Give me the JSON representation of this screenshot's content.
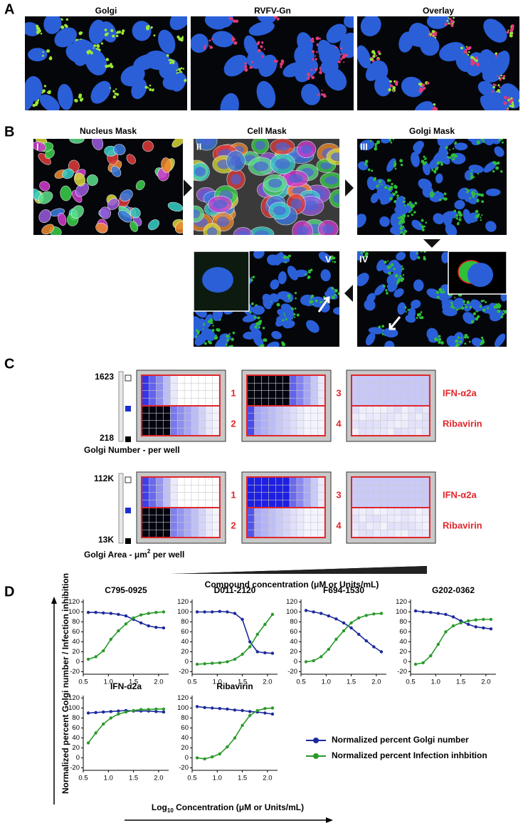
{
  "panel_labels": [
    "A",
    "B",
    "C",
    "D"
  ],
  "panel_a": {
    "titles": [
      "Golgi",
      "RVFV-Gn",
      "Overlay"
    ]
  },
  "panel_b": {
    "titles": [
      "Nucleus Mask",
      "Cell Mask",
      "Golgi Mask"
    ],
    "steps": [
      "I",
      "II",
      "III",
      "IV",
      "V"
    ]
  },
  "panel_c": {
    "rows": [
      {
        "scale_max": "1623",
        "scale_min": "218",
        "caption": "Golgi Number - per well"
      },
      {
        "scale_max": "112K",
        "scale_min": "13K",
        "caption": {
          "text": "Golgi Area - μm",
          "sup": "2",
          "rest": " per well"
        }
      }
    ],
    "plate_numbers": [
      "1",
      "2",
      "3",
      "4"
    ],
    "treatments": [
      "IFN-α2a",
      "Ribavirin"
    ],
    "gradient_label": "Compound concentration (μM or Units/mL)"
  },
  "panel_d": {
    "y_label": "Normalized percent Golgi number / Infection inhibition",
    "x_label": {
      "main": "Log",
      "sub": "10",
      "rest": " Concentration (μM or Units/mL)"
    },
    "legend": [
      {
        "name": "Normalized percent Golgi number",
        "color": "#1c2a9c"
      },
      {
        "name": "Normalized percent Infection inhbition",
        "color": "#2a9a2a"
      }
    ]
  },
  "chart_data": [
    {
      "type": "line",
      "title": "C795-0925",
      "x": [
        0.6,
        0.75,
        0.9,
        1.05,
        1.2,
        1.35,
        1.5,
        1.65,
        1.8,
        1.95,
        2.1
      ],
      "series": [
        {
          "color": "#1c2a9c",
          "values": [
            99,
            99,
            98,
            97,
            95,
            92,
            85,
            78,
            72,
            69,
            68
          ]
        },
        {
          "color": "#2a9a2a",
          "values": [
            5,
            10,
            22,
            45,
            62,
            76,
            88,
            94,
            97,
            99,
            100
          ]
        }
      ],
      "xlim": [
        0.5,
        2.2
      ],
      "xticks": [
        0.5,
        {
          "value": 1,
          "label": "1.0"
        },
        1.5,
        {
          "value": 2,
          "label": "2.0"
        }
      ],
      "ylim": [
        -25,
        125
      ],
      "yticks": [
        -20,
        0,
        20,
        40,
        60,
        80,
        100,
        120
      ]
    },
    {
      "type": "line",
      "title": "D011-2120",
      "x": [
        0.6,
        0.75,
        0.9,
        1.05,
        1.2,
        1.35,
        1.5,
        1.65,
        1.8,
        1.95,
        2.1
      ],
      "series": [
        {
          "color": "#1c2a9c",
          "values": [
            100,
            100,
            100,
            101,
            100,
            97,
            85,
            40,
            20,
            18,
            17
          ]
        },
        {
          "color": "#2a9a2a",
          "values": [
            -5,
            -4,
            -3,
            -2,
            0,
            5,
            15,
            30,
            55,
            75,
            95
          ]
        }
      ],
      "xlim": [
        0.5,
        2.2
      ],
      "xticks": [
        0.5,
        {
          "value": 1,
          "label": "1.0"
        },
        1.5,
        {
          "value": 2,
          "label": "2.0"
        }
      ],
      "ylim": [
        -25,
        125
      ],
      "yticks": [
        -20,
        0,
        20,
        40,
        60,
        80,
        100,
        120
      ]
    },
    {
      "type": "line",
      "title": "F694-1530",
      "x": [
        0.6,
        0.75,
        0.9,
        1.05,
        1.2,
        1.35,
        1.5,
        1.65,
        1.8,
        1.95,
        2.1
      ],
      "series": [
        {
          "color": "#1c2a9c",
          "values": [
            103,
            100,
            97,
            92,
            86,
            78,
            68,
            55,
            42,
            30,
            20
          ]
        },
        {
          "color": "#2a9a2a",
          "values": [
            0,
            2,
            10,
            25,
            45,
            62,
            78,
            88,
            93,
            96,
            97
          ]
        }
      ],
      "xlim": [
        0.5,
        2.2
      ],
      "xticks": [
        0.5,
        {
          "value": 1,
          "label": "1.0"
        },
        1.5,
        {
          "value": 2,
          "label": "2.0"
        }
      ],
      "ylim": [
        -25,
        125
      ],
      "yticks": [
        -20,
        0,
        20,
        40,
        60,
        80,
        100,
        120
      ]
    },
    {
      "type": "line",
      "title": "G202-0362",
      "x": [
        0.6,
        0.75,
        0.9,
        1.05,
        1.2,
        1.35,
        1.5,
        1.65,
        1.8,
        1.95,
        2.1
      ],
      "series": [
        {
          "color": "#1c2a9c",
          "values": [
            102,
            100,
            99,
            97,
            95,
            90,
            82,
            75,
            70,
            68,
            66
          ]
        },
        {
          "color": "#2a9a2a",
          "values": [
            -5,
            -2,
            12,
            35,
            60,
            72,
            78,
            82,
            84,
            85,
            85
          ]
        }
      ],
      "xlim": [
        0.5,
        2.2
      ],
      "xticks": [
        0.5,
        {
          "value": 1,
          "label": "1.0"
        },
        1.5,
        {
          "value": 2,
          "label": "2.0"
        }
      ],
      "ylim": [
        -25,
        125
      ],
      "yticks": [
        -20,
        0,
        20,
        40,
        60,
        80,
        100,
        120
      ]
    },
    {
      "type": "line",
      "title": "IFN-α2a",
      "x": [
        0.6,
        0.75,
        0.9,
        1.05,
        1.2,
        1.35,
        1.5,
        1.65,
        1.8,
        1.95,
        2.1
      ],
      "series": [
        {
          "color": "#1c2a9c",
          "values": [
            90,
            91,
            92,
            93,
            94,
            95,
            94,
            94,
            94,
            93,
            92
          ]
        },
        {
          "color": "#2a9a2a",
          "values": [
            30,
            50,
            68,
            80,
            88,
            92,
            95,
            97,
            97,
            98,
            98
          ]
        }
      ],
      "xlim": [
        0.5,
        2.2
      ],
      "xticks": [
        0.5,
        {
          "value": 1,
          "label": "1.0"
        },
        1.5,
        {
          "value": 2,
          "label": "2.0"
        }
      ],
      "ylim": [
        -25,
        125
      ],
      "yticks": [
        -20,
        0,
        20,
        40,
        60,
        80,
        100,
        120
      ]
    },
    {
      "type": "line",
      "title": "Ribavirin",
      "x": [
        0.6,
        0.75,
        0.9,
        1.05,
        1.2,
        1.35,
        1.5,
        1.65,
        1.8,
        1.95,
        2.1
      ],
      "series": [
        {
          "color": "#1c2a9c",
          "values": [
            103,
            101,
            100,
            99,
            98,
            96,
            95,
            93,
            92,
            90,
            88
          ]
        },
        {
          "color": "#2a9a2a",
          "values": [
            0,
            -2,
            2,
            8,
            22,
            40,
            65,
            85,
            95,
            99,
            100
          ]
        }
      ],
      "xlim": [
        0.5,
        2.2
      ],
      "xticks": [
        0.5,
        {
          "value": 1,
          "label": "1.0"
        },
        1.5,
        {
          "value": 2,
          "label": "2.0"
        }
      ],
      "ylim": [
        -25,
        125
      ],
      "yticks": [
        -20,
        0,
        20,
        40,
        60,
        80,
        100,
        120
      ]
    }
  ]
}
